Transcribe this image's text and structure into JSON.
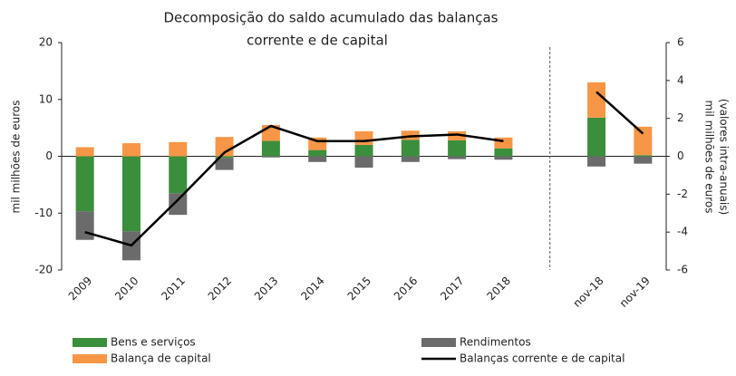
{
  "chart_data": {
    "type": "bar",
    "title": [
      "Decomposição  do saldo acumulado das balanças",
      "corrente  e de capital"
    ],
    "ylabel": "mil milhões de euros",
    "y2label": [
      "mil milhões de euros",
      "(valores intra-anuais)"
    ],
    "categories": [
      "2009",
      "2010",
      "2011",
      "2012",
      "2013",
      "2014",
      "2015",
      "2016",
      "2017",
      "2018",
      null,
      "nov-18",
      "nov-19"
    ],
    "series": [
      {
        "name": "Bens e serviços",
        "color": "#3b8e3b",
        "values": [
          -9.7,
          -13.2,
          -6.5,
          -0.3,
          2.7,
          1.1,
          2.0,
          2.9,
          2.8,
          1.4,
          null,
          6.8,
          0.2
        ]
      },
      {
        "name": "Rendimentos",
        "color": "#6b6b6b",
        "values": [
          -5.0,
          -5.1,
          -3.8,
          -2.1,
          -0.2,
          -1.0,
          -2.0,
          -1.0,
          -0.5,
          -0.6,
          null,
          -1.8,
          -1.3
        ]
      },
      {
        "name": "Balança de capital",
        "color": "#f79646",
        "values": [
          1.6,
          2.3,
          2.5,
          3.4,
          2.8,
          2.2,
          2.4,
          1.6,
          1.6,
          1.9,
          null,
          6.2,
          5.0
        ]
      },
      {
        "name": "Balanças corrente e de capital",
        "color": "#000000",
        "type": "line",
        "axis": "y2",
        "values": [
          -4.0,
          -4.7,
          -2.3,
          0.2,
          1.6,
          0.8,
          0.8,
          1.05,
          1.15,
          0.8,
          null,
          3.4,
          1.2
        ]
      }
    ],
    "ylim": [
      -20,
      20
    ],
    "yticks": [
      -20,
      -10,
      0,
      10,
      20
    ],
    "y2lim": [
      -6,
      6
    ],
    "y2ticks": [
      -6,
      -4,
      -2,
      0,
      2,
      4,
      6
    ]
  }
}
